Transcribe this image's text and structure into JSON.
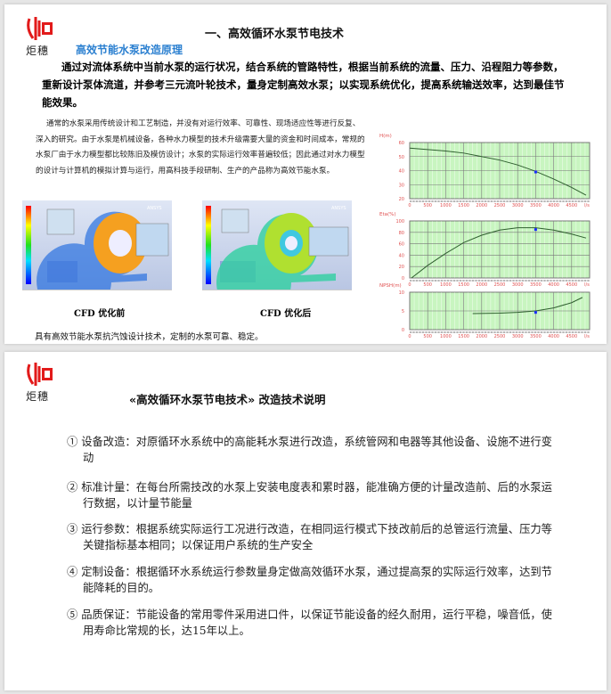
{
  "logo": {
    "name": "炬穗",
    "colors": [
      "#e21a1a",
      "#ffffff"
    ]
  },
  "slide1": {
    "title": "一、高效循环水泵节电技术",
    "subtitle": "高效节能水泵改造原理",
    "intro": "通过对流体系统中当前水泵的运行状况，结合系统的管路特性，根据当前系统的流量、压力、沿程阻力等参数，重新设计泵体流道，并参考三元流叶轮技术，量身定制高效水泵；以实现系统优化，提高系统输送效率，达到最佳节能效果。",
    "paragraph": "通常的水泵采用传统设计和工艺制造，并没有对运行效率、可靠性、现场适应性等进行反复、深入的研究。由于水泵是机械设备，各种水力模型的技术升级需要大量的资金和时间成本，常规的水泵厂由于水力模型都比较陈旧及模仿设计；水泵的实际运行效率普遍较低；因此通过对水力模型的设计与计算机的模拟计算与运行，用高科技手段研制、生产的产品称为高效节能水泵。",
    "cfd_before_caption": "CFD 优化前",
    "cfd_after_caption": "CFD 优化后",
    "cfd_watermark": "ANSYS",
    "footer": "具有高效节能水泵抗汽蚀设计技术，定制的水泵可靠、稳定。"
  },
  "chart_data": [
    {
      "type": "line",
      "ylabel": "H(m)",
      "xticks": [
        "0",
        "500",
        "1000",
        "1500",
        "2000",
        "2500",
        "3000",
        "3500",
        "4000",
        "4500",
        "l/s"
      ],
      "yticks": [
        "20",
        "30",
        "40",
        "50",
        "60"
      ],
      "ylim": [
        20,
        60
      ],
      "xlim": [
        0,
        5000
      ],
      "grid": true,
      "x": [
        0,
        500,
        1000,
        1500,
        2000,
        2500,
        3000,
        3500,
        4000,
        4500,
        4900
      ],
      "y": [
        56,
        55,
        54,
        52.5,
        50,
        47.5,
        44,
        39.5,
        34,
        28,
        22.5
      ],
      "point": [
        3500,
        39
      ],
      "line_color": "#2f5f2f",
      "point_color": "#1a2cff",
      "bg": "#c8f5c0"
    },
    {
      "type": "line",
      "ylabel": "Eta(%)",
      "xticks": [
        "0",
        "500",
        "1000",
        "1500",
        "2000",
        "2500",
        "3000",
        "3500",
        "4000",
        "4500",
        "l/s"
      ],
      "yticks": [
        "0",
        "20",
        "40",
        "60",
        "80",
        "100"
      ],
      "ylim": [
        0,
        100
      ],
      "xlim": [
        0,
        5000
      ],
      "grid": true,
      "x": [
        50,
        500,
        1000,
        1500,
        2000,
        2500,
        3000,
        3500,
        4000,
        4500,
        4900
      ],
      "y": [
        0,
        22,
        43,
        62,
        75,
        84,
        88,
        88,
        84,
        77,
        70
      ],
      "point": [
        3500,
        85
      ],
      "line_color": "#2f5f2f",
      "point_color": "#1a2cff",
      "bg": "#c8f5c0"
    },
    {
      "type": "line",
      "ylabel": "NPSH(m)",
      "xticks": [
        "0",
        "500",
        "1000",
        "1500",
        "2000",
        "2500",
        "3000",
        "3500",
        "4000",
        "4500",
        "l/s"
      ],
      "yticks": [
        "0",
        "5",
        "10"
      ],
      "ylim": [
        0,
        10
      ],
      "xlim": [
        0,
        5000
      ],
      "grid": true,
      "x": [
        1750,
        2500,
        3000,
        3500,
        4000,
        4500,
        4800
      ],
      "y": [
        4.3,
        4.4,
        4.6,
        5,
        5.8,
        7.2,
        8.6
      ],
      "point": [
        3500,
        4.6
      ],
      "line_color": "#2f5f2f",
      "point_color": "#1a2cff",
      "bg": "#c8f5c0"
    }
  ],
  "slide2": {
    "title": "«高效循环水泵节电技术» 改造技术说明",
    "items": [
      "① 设备改造：对原循环水系统中的高能耗水泵进行改造，系统管网和电器等其他设备、设施不进行变动",
      "② 标准计量：在每台所需技改的水泵上安装电度表和累时器，能准确方便的计量改造前、后的水泵运行数据，以计量节能量",
      "③ 运行参数：根据系统实际运行工况进行改造，在相同运行模式下技改前后的总管运行流量、压力等关键指标基本相同；以保证用户系统的生产安全",
      "④ 定制设备：根据循环水系统运行参数量身定做高效循环水泵，通过提高泵的实际运行效率，达到节能降耗的目的。",
      "⑤ 品质保证：节能设备的常用零件采用进口件，以保证节能设备的经久耐用，运行平稳，噪音低，使用寿命比常规的长，达15年以上。"
    ]
  }
}
